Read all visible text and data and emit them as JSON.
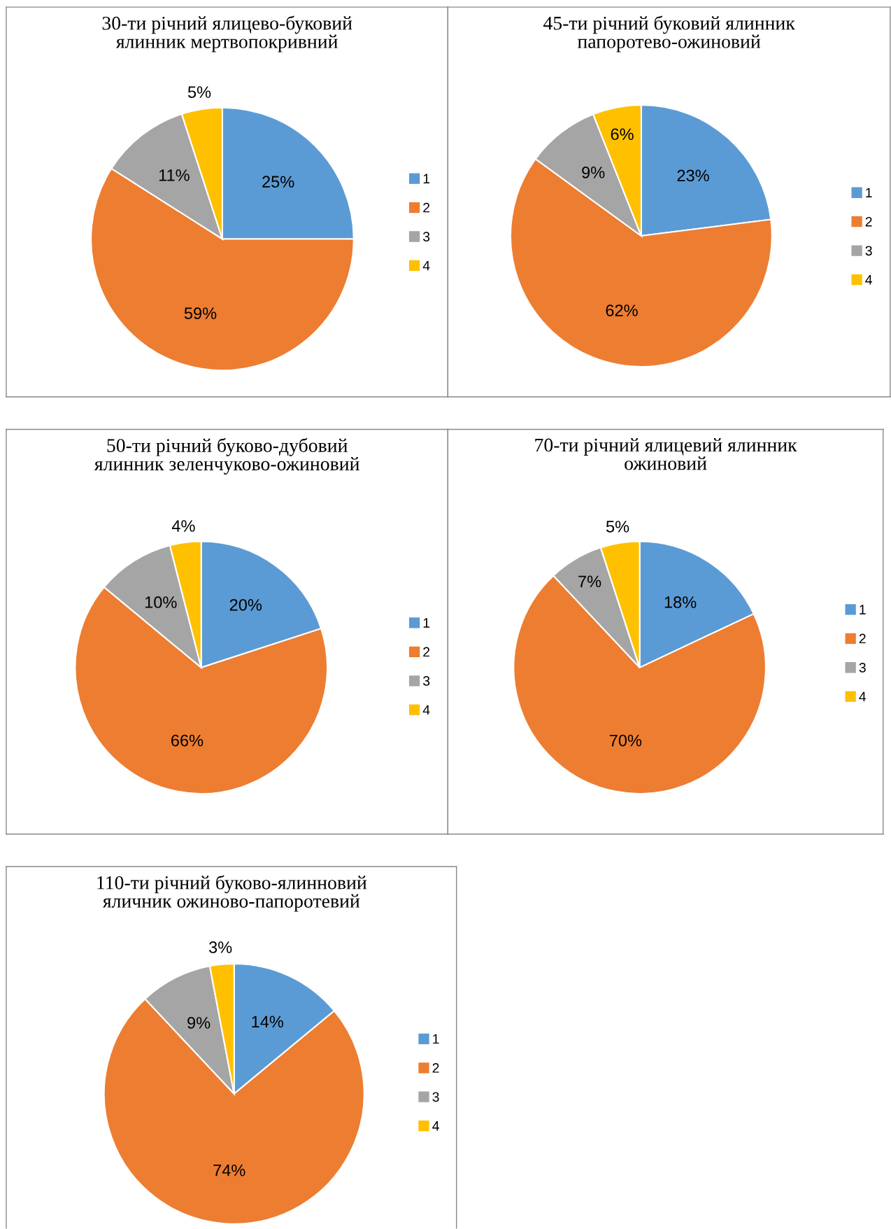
{
  "chart_data": [
    {
      "type": "pie",
      "title": "30-ти річний ялицево-буковий\nялинник мертвопокривний",
      "categories": [
        "1",
        "2",
        "3",
        "4"
      ],
      "values": [
        25,
        59,
        11,
        5
      ],
      "value_labels": [
        "25%",
        "59%",
        "11%",
        "5%"
      ],
      "colors": [
        "#5b9bd5",
        "#ed7d31",
        "#a5a5a5",
        "#ffc000"
      ],
      "legend": "right"
    },
    {
      "type": "pie",
      "title": "45-ти річний буковий ялинник\nпапоротево-ожиновий",
      "categories": [
        "1",
        "2",
        "3",
        "4"
      ],
      "values": [
        23,
        62,
        9,
        6
      ],
      "value_labels": [
        "23%",
        "62%",
        "9%",
        "6%"
      ],
      "colors": [
        "#5b9bd5",
        "#ed7d31",
        "#a5a5a5",
        "#ffc000"
      ],
      "legend": "right"
    },
    {
      "type": "pie",
      "title": "50-ти річний буково-дубовий\nялинник зеленчуково-ожиновий",
      "categories": [
        "1",
        "2",
        "3",
        "4"
      ],
      "values": [
        20,
        66,
        10,
        4
      ],
      "value_labels": [
        "20%",
        "66%",
        "10%",
        "4%"
      ],
      "colors": [
        "#5b9bd5",
        "#ed7d31",
        "#a5a5a5",
        "#ffc000"
      ],
      "legend": "right"
    },
    {
      "type": "pie",
      "title": "70-ти річний ялицевий ялинник\nожиновий",
      "categories": [
        "1",
        "2",
        "3",
        "4"
      ],
      "values": [
        18,
        70,
        7,
        5
      ],
      "value_labels": [
        "18%",
        "70%",
        "7%",
        "5%"
      ],
      "colors": [
        "#5b9bd5",
        "#ed7d31",
        "#a5a5a5",
        "#ffc000"
      ],
      "legend": "right"
    },
    {
      "type": "pie",
      "title": "110-ти річний буково-ялинновий\nяличник ожиново-папоротевий",
      "categories": [
        "1",
        "2",
        "3",
        "4"
      ],
      "values": [
        14,
        74,
        9,
        3
      ],
      "value_labels": [
        "14%",
        "74%",
        "9%",
        "3%"
      ],
      "colors": [
        "#5b9bd5",
        "#ed7d31",
        "#a5a5a5",
        "#ffc000"
      ],
      "legend": "right"
    }
  ]
}
